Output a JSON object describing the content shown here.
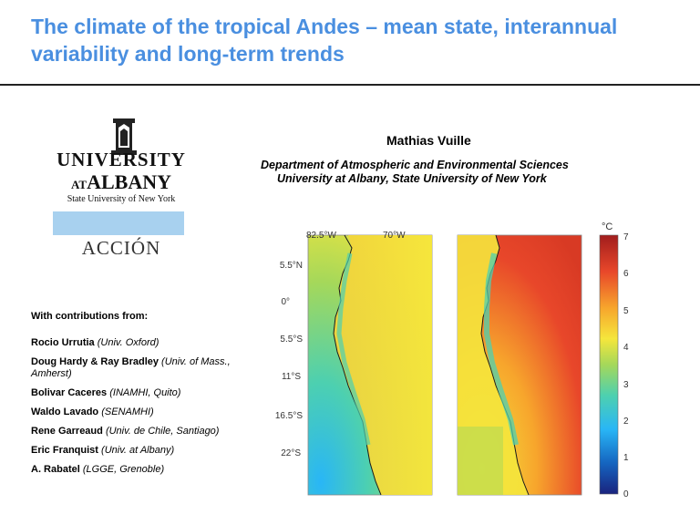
{
  "slide": {
    "title": "The climate of the tropical Andes – mean state, interannual variability and long-term trends",
    "author": "Mathias Vuille",
    "affiliation_line1": "Department of Atmospheric and Environmental Sciences",
    "affiliation_line2": "University at Albany, State University of New York"
  },
  "logo": {
    "line1": "UNIVERSITY",
    "at": "AT",
    "line2": "ALBANY",
    "line3": "State University of New York",
    "accion": "ACCIÓN",
    "band_color": "#a8d1ef"
  },
  "contributions": {
    "heading": "With contributions from:",
    "items": [
      {
        "name": "Rocio Urrutia",
        "affil": "(Univ. Oxford)"
      },
      {
        "name": "Doug Hardy & Ray Bradley",
        "affil": "(Univ. of Mass., Amherst)"
      },
      {
        "name": "Bolivar Caceres",
        "affil": "(INAMHI, Quito)"
      },
      {
        "name": "Waldo Lavado",
        "affil": "(SENAMHI)"
      },
      {
        "name": "Rene Garreaud",
        "affil": "(Univ. de Chile, Santiago)"
      },
      {
        "name": "Eric Franquist",
        "affil": "(Univ. at Albany)"
      },
      {
        "name": "A.  Rabatel",
        "affil": "(LGGE, Grenoble)"
      }
    ]
  },
  "figure": {
    "lon_labels": [
      "82.5°W",
      "70°W"
    ],
    "lat_labels": [
      "5.5°N",
      "0°",
      "5.5°S",
      "11°S",
      "16.5°S",
      "22°S"
    ],
    "colorbar_unit": "°C",
    "colorbar_ticks": [
      "7",
      "6",
      "5",
      "4",
      "3",
      "2",
      "1",
      "0"
    ],
    "colormap": [
      "#1a237e",
      "#1565c0",
      "#29b6f6",
      "#4dd0b0",
      "#a5d85a",
      "#f5e63c",
      "#f7a52c",
      "#e8472a",
      "#a11d1d"
    ]
  }
}
